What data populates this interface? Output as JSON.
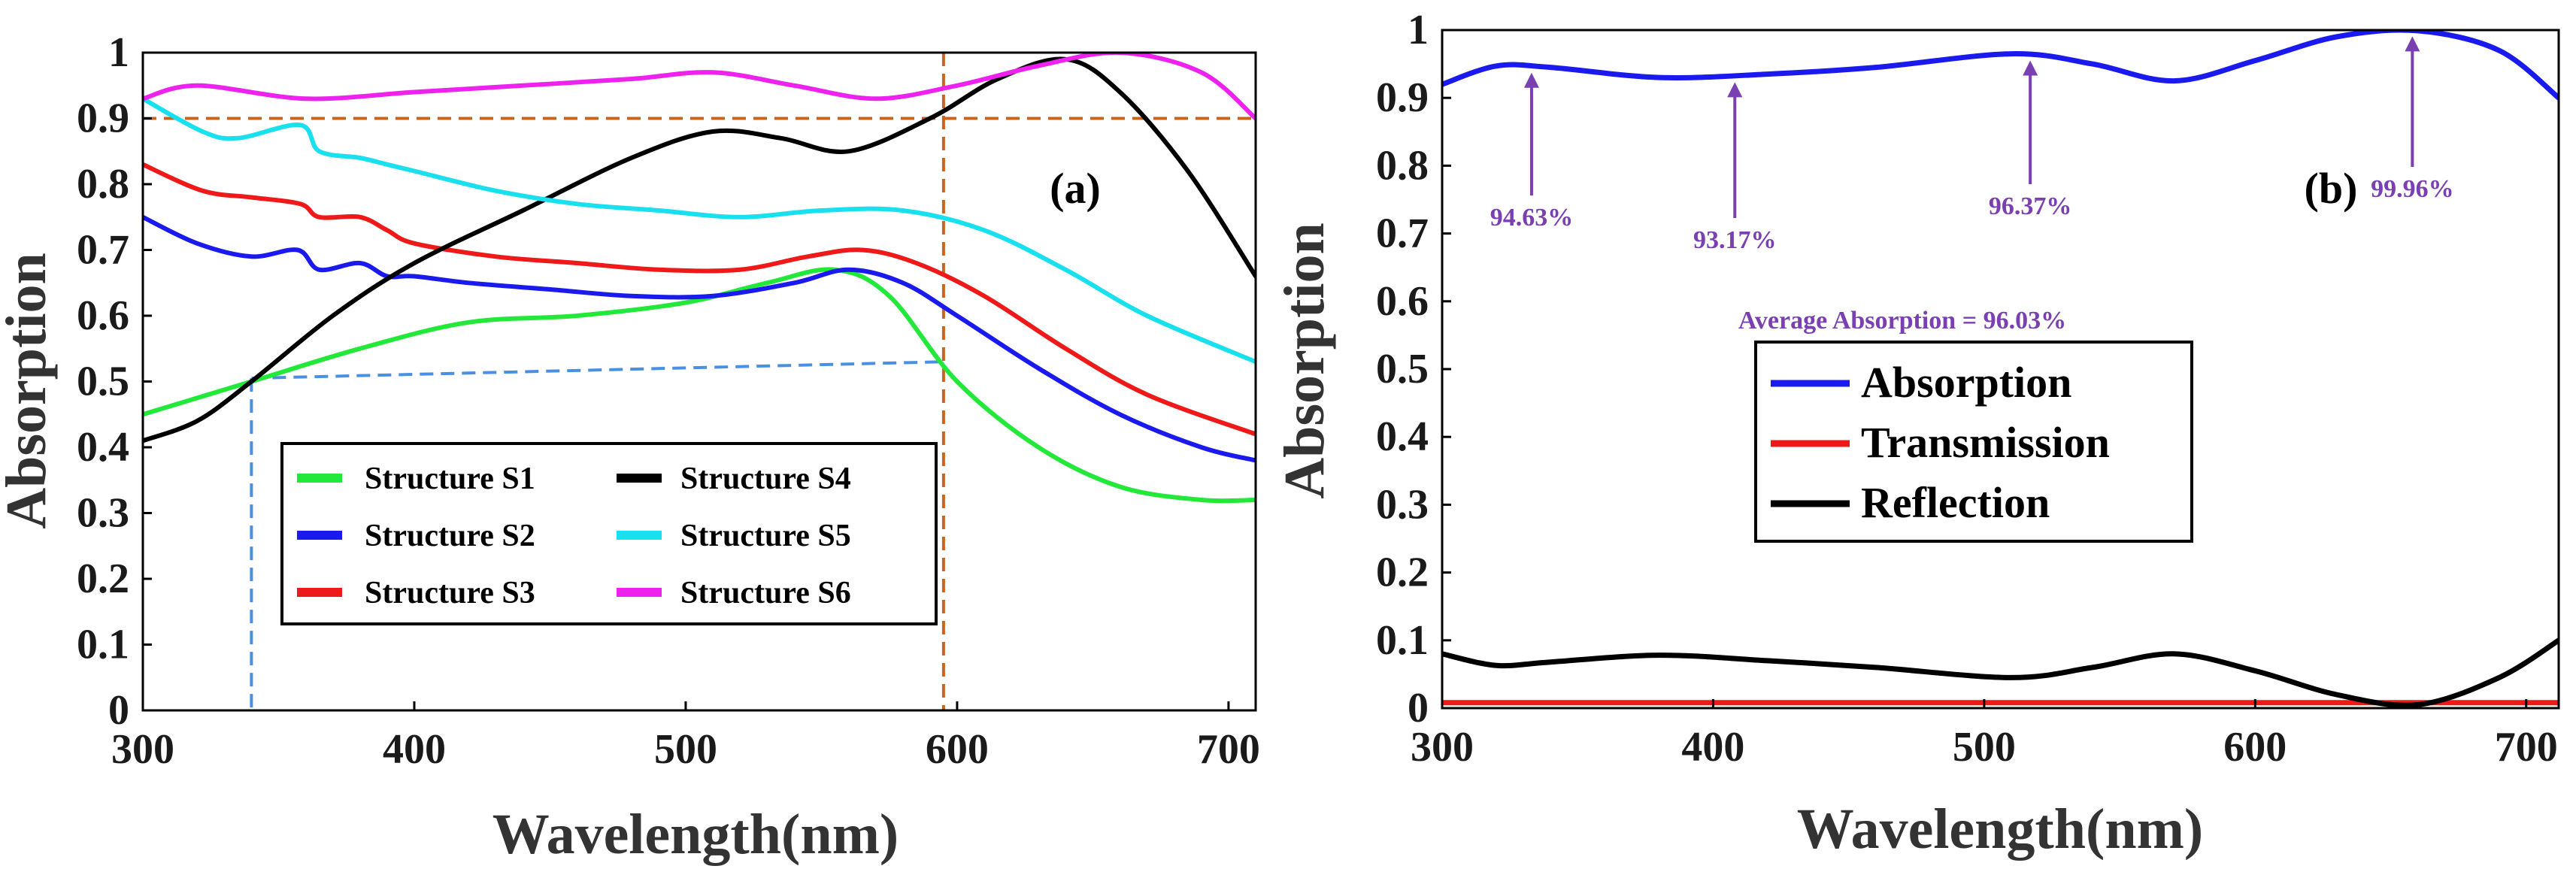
{
  "chart_data": [
    {
      "type": "line",
      "panel_label": "(a)",
      "xlabel": "Wavelength(nm)",
      "ylabel": "Absorption",
      "xlim": [
        300,
        710
      ],
      "ylim": [
        0,
        1
      ],
      "xticks": [
        300,
        400,
        500,
        600,
        700
      ],
      "yticks": [
        0,
        0.1,
        0.2,
        0.3,
        0.4,
        0.5,
        0.6,
        0.7,
        0.8,
        0.9,
        1
      ],
      "legend_position": "lower-center",
      "series": [
        {
          "name": "Structure S1",
          "color": "#22e83a",
          "x": [
            300,
            340,
            380,
            420,
            460,
            500,
            530,
            555,
            575,
            600,
            630,
            660,
            690,
            710
          ],
          "y": [
            0.45,
            0.5,
            0.55,
            0.59,
            0.6,
            0.62,
            0.65,
            0.67,
            0.63,
            0.5,
            0.4,
            0.34,
            0.32,
            0.32
          ]
        },
        {
          "name": "Structure S2",
          "color": "#1a1aee",
          "x": [
            300,
            320,
            340,
            357,
            365,
            380,
            390,
            400,
            420,
            450,
            480,
            510,
            540,
            560,
            580,
            600,
            630,
            660,
            690,
            710
          ],
          "y": [
            0.75,
            0.71,
            0.69,
            0.7,
            0.67,
            0.68,
            0.66,
            0.66,
            0.65,
            0.64,
            0.63,
            0.63,
            0.65,
            0.67,
            0.65,
            0.6,
            0.52,
            0.45,
            0.4,
            0.38
          ]
        },
        {
          "name": "Structure S3",
          "color": "#ee1a1a",
          "x": [
            300,
            322,
            340,
            358,
            365,
            380,
            390,
            400,
            430,
            460,
            490,
            520,
            545,
            565,
            585,
            610,
            640,
            670,
            710
          ],
          "y": [
            0.83,
            0.79,
            0.78,
            0.77,
            0.75,
            0.75,
            0.73,
            0.71,
            0.69,
            0.68,
            0.67,
            0.67,
            0.69,
            0.7,
            0.68,
            0.63,
            0.55,
            0.48,
            0.42
          ]
        },
        {
          "name": "Structure S4",
          "color": "#000000",
          "x": [
            300,
            320,
            340,
            370,
            400,
            440,
            480,
            510,
            535,
            560,
            590,
            615,
            640,
            660,
            685,
            710
          ],
          "y": [
            0.41,
            0.44,
            0.5,
            0.6,
            0.68,
            0.76,
            0.84,
            0.88,
            0.87,
            0.85,
            0.9,
            0.96,
            0.99,
            0.94,
            0.82,
            0.66
          ]
        },
        {
          "name": "Structure S5",
          "color": "#19e0ee",
          "x": [
            300,
            322,
            335,
            358,
            365,
            380,
            390,
            400,
            430,
            460,
            490,
            520,
            550,
            580,
            610,
            640,
            670,
            710
          ],
          "y": [
            0.93,
            0.88,
            0.87,
            0.89,
            0.85,
            0.84,
            0.83,
            0.82,
            0.79,
            0.77,
            0.76,
            0.75,
            0.76,
            0.76,
            0.73,
            0.67,
            0.6,
            0.53
          ]
        },
        {
          "name": "Structure S6",
          "color": "#ee22ee",
          "x": [
            300,
            320,
            360,
            400,
            440,
            480,
            510,
            540,
            570,
            600,
            630,
            660,
            690,
            710
          ],
          "y": [
            0.93,
            0.95,
            0.93,
            0.94,
            0.95,
            0.96,
            0.97,
            0.95,
            0.93,
            0.95,
            0.98,
            1.0,
            0.97,
            0.9
          ]
        }
      ],
      "reference_lines": {
        "orange_h": 0.9,
        "orange_v": 595,
        "blue_h_from_y": 0.505,
        "blue_h_to_y": 0.53,
        "blue_v": 340
      }
    },
    {
      "type": "line",
      "panel_label": "(b)",
      "xlabel": "Wavelength(nm)",
      "ylabel": "Absorption",
      "xlim": [
        300,
        712
      ],
      "ylim": [
        0,
        1
      ],
      "xticks": [
        300,
        400,
        500,
        600,
        700
      ],
      "yticks": [
        0,
        0.1,
        0.2,
        0.3,
        0.4,
        0.5,
        0.6,
        0.7,
        0.8,
        0.9,
        1
      ],
      "legend_position": "center",
      "series": [
        {
          "name": "Absorption",
          "color": "#1a1aee",
          "x": [
            300,
            320,
            340,
            380,
            420,
            460,
            510,
            540,
            570,
            600,
            630,
            660,
            690,
            712
          ],
          "y": [
            0.92,
            0.947,
            0.945,
            0.93,
            0.935,
            0.945,
            0.965,
            0.95,
            0.925,
            0.955,
            0.99,
            0.999,
            0.97,
            0.9
          ]
        },
        {
          "name": "Transmission",
          "color": "#ee1a1a",
          "x": [
            300,
            712
          ],
          "y": [
            0.008,
            0.008
          ]
        },
        {
          "name": "Reflection",
          "color": "#000000",
          "x": [
            300,
            320,
            340,
            380,
            420,
            460,
            510,
            540,
            570,
            600,
            630,
            660,
            690,
            712
          ],
          "y": [
            0.08,
            0.063,
            0.068,
            0.078,
            0.07,
            0.06,
            0.045,
            0.06,
            0.08,
            0.055,
            0.02,
            0.005,
            0.045,
            0.1
          ]
        }
      ],
      "annotations": [
        {
          "text": "94.63%",
          "x": 333,
          "y": 0.946
        },
        {
          "text": "93.17%",
          "x": 408,
          "y": 0.932
        },
        {
          "text": "96.37%",
          "x": 517,
          "y": 0.964
        },
        {
          "text": "99.96%",
          "x": 658,
          "y": 0.9996
        }
      ],
      "average_text": "Average Absorption = 96.03%"
    }
  ]
}
